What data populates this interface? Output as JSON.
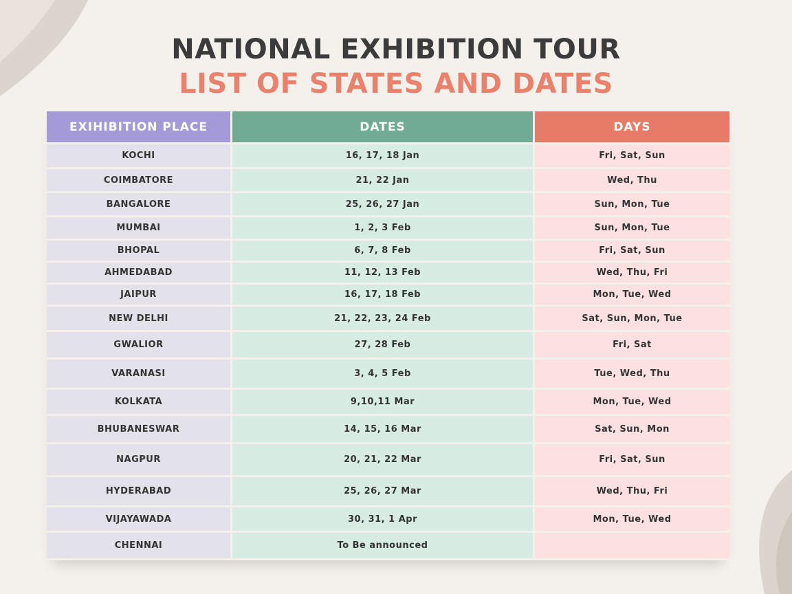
{
  "title": {
    "line1": "NATIONAL EXHIBITION TOUR",
    "line2": "LIST OF STATES AND DATES"
  },
  "colors": {
    "background": "#f4f1ec",
    "title_dark": "#3b3b3b",
    "title_accent": "#e8826c",
    "place_header": "#a39ad6",
    "dates_header": "#72ab93",
    "days_header": "#e77b68",
    "place_cell": "#e3e1e9",
    "dates_cell": "#d7ede3",
    "days_cell": "#fde1e1"
  },
  "table": {
    "headers": [
      "EXIHIBITION PLACE",
      "DATES",
      "DAYS"
    ],
    "rows": [
      {
        "place": "KOCHI",
        "dates": "16, 17, 18 Jan",
        "days": "Fri, Sat, Sun"
      },
      {
        "place": "COIMBATORE",
        "dates": "21, 22 Jan",
        "days": "Wed, Thu"
      },
      {
        "place": "BANGALORE",
        "dates": "25, 26, 27 Jan",
        "days": "Sun, Mon, Tue"
      },
      {
        "place": "MUMBAI",
        "dates": "1, 2, 3 Feb",
        "days": "Sun, Mon, Tue"
      },
      {
        "place": "BHOPAL",
        "dates": "6, 7, 8 Feb",
        "days": "Fri, Sat, Sun"
      },
      {
        "place": "AHMEDABAD",
        "dates": "11, 12, 13 Feb",
        "days": "Wed, Thu, Fri"
      },
      {
        "place": "JAIPUR",
        "dates": "16, 17, 18 Feb",
        "days": "Mon, Tue, Wed"
      },
      {
        "place": "NEW DELHI",
        "dates": "21, 22, 23, 24 Feb",
        "days": "Sat, Sun, Mon, Tue"
      },
      {
        "place": "GWALIOR",
        "dates": "27, 28 Feb",
        "days": "Fri, Sat"
      },
      {
        "place": "VARANASI",
        "dates": "3, 4, 5 Feb",
        "days": "Tue, Wed, Thu"
      },
      {
        "place": "KOLKATA",
        "dates": "9,10,11 Mar",
        "days": "Mon, Tue, Wed"
      },
      {
        "place": "BHUBANESWAR",
        "dates": "14, 15, 16 Mar",
        "days": "Sat, Sun, Mon"
      },
      {
        "place": "NAGPUR",
        "dates": "20, 21, 22 Mar",
        "days": "Fri, Sat, Sun"
      },
      {
        "place": "HYDERABAD",
        "dates": "25, 26, 27 Mar",
        "days": "Wed, Thu, Fri"
      },
      {
        "place": "VIJAYAWADA",
        "dates": "30, 31, 1 Apr",
        "days": "Mon, Tue, Wed"
      },
      {
        "place": "CHENNAI",
        "dates": "To Be announced",
        "days": ""
      }
    ]
  }
}
